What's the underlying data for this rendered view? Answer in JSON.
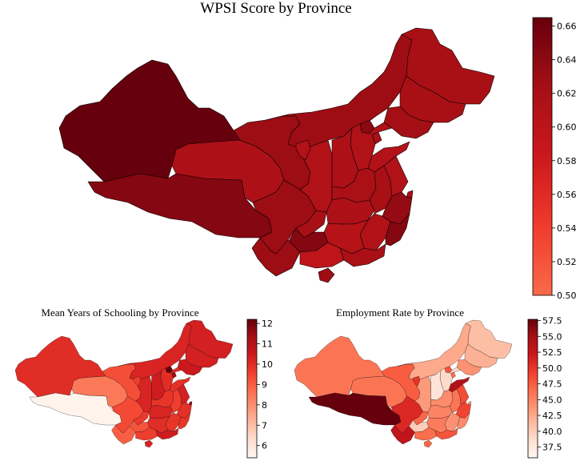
{
  "figure": {
    "main_title": "WPSI Score by Province",
    "left_title": "Mean Years of Schooling by Province",
    "right_title": "Employment Rate by Province"
  },
  "colorbars": {
    "main": {
      "min": 0.5,
      "max": 0.665,
      "ticks": [
        "0.50",
        "0.52",
        "0.54",
        "0.56",
        "0.58",
        "0.60",
        "0.62",
        "0.64",
        "0.66"
      ],
      "tick_values": [
        0.5,
        0.52,
        0.54,
        0.56,
        0.58,
        0.6,
        0.62,
        0.64,
        0.66
      ]
    },
    "left": {
      "min": 5.4,
      "max": 12.2,
      "ticks": [
        "6",
        "7",
        "8",
        "9",
        "10",
        "11",
        "12"
      ],
      "tick_values": [
        6,
        7,
        8,
        9,
        10,
        11,
        12
      ]
    },
    "right": {
      "min": 35.8,
      "max": 57.7,
      "ticks": [
        "37.5",
        "40.0",
        "42.5",
        "45.0",
        "47.5",
        "50.0",
        "52.5",
        "55.0",
        "57.5"
      ],
      "tick_values": [
        37.5,
        40.0,
        42.5,
        45.0,
        47.5,
        50.0,
        52.5,
        55.0,
        57.5
      ]
    }
  },
  "colormap": {
    "name": "Reds",
    "stops": [
      "#fff5f0",
      "#fee0d2",
      "#fcbba1",
      "#fc9272",
      "#fb6a4a",
      "#ef3b2c",
      "#cb181d",
      "#a50f15",
      "#67000d"
    ]
  },
  "chart_data": [
    {
      "type": "choropleth",
      "title": "WPSI Score by Province",
      "values": {
        "Xinjiang": 0.665,
        "Tibet": 0.645,
        "Qinghai": 0.615,
        "Gansu": 0.63,
        "Inner Mongolia": 0.628,
        "Heilongjiang": 0.62,
        "Jilin": 0.62,
        "Liaoning": 0.625,
        "Beijing": 0.64,
        "Tianjin": 0.62,
        "Hebei": 0.612,
        "Shanxi": 0.615,
        "Shaanxi": 0.612,
        "Ningxia": 0.61,
        "Shandong": 0.61,
        "Henan": 0.618,
        "Sichuan": 0.63,
        "Chongqing": 0.62,
        "Hubei": 0.615,
        "Anhui": 0.62,
        "Jiangsu": 0.612,
        "Shanghai": 0.62,
        "Zhejiang": 0.635,
        "Jiangxi": 0.612,
        "Hunan": 0.605,
        "Guizhou": 0.645,
        "Yunnan": 0.63,
        "Guangxi": 0.598,
        "Guangdong": 0.618,
        "Fujian": 0.645,
        "Hainan": 0.628
      }
    },
    {
      "type": "choropleth",
      "title": "Mean Years of Schooling by Province",
      "values": {
        "Xinjiang": 10.0,
        "Tibet": 5.5,
        "Qinghai": 8.5,
        "Gansu": 9.3,
        "Inner Mongolia": 10.2,
        "Heilongjiang": 10.3,
        "Jilin": 10.3,
        "Liaoning": 10.5,
        "Beijing": 12.2,
        "Tianjin": 11.5,
        "Hebei": 10.0,
        "Shanxi": 10.4,
        "Shaanxi": 10.2,
        "Ningxia": 9.6,
        "Shandong": 9.9,
        "Henan": 9.8,
        "Sichuan": 9.4,
        "Chongqing": 9.7,
        "Hubei": 10.2,
        "Anhui": 9.6,
        "Jiangsu": 10.3,
        "Shanghai": 11.6,
        "Zhejiang": 9.9,
        "Jiangxi": 9.8,
        "Hunan": 10.0,
        "Guizhou": 9.2,
        "Yunnan": 9.0,
        "Guangxi": 9.6,
        "Guangdong": 10.4,
        "Fujian": 9.8,
        "Hainan": 10.2
      }
    },
    {
      "type": "choropleth",
      "title": "Employment Rate by Province",
      "values": {
        "Xinjiang": 46.0,
        "Tibet": 57.7,
        "Qinghai": 46.0,
        "Gansu": 47.5,
        "Inner Mongolia": 42.5,
        "Heilongjiang": 41.0,
        "Jilin": 42.0,
        "Liaoning": 44.0,
        "Beijing": 48.0,
        "Tianjin": 46.5,
        "Hebei": 39.0,
        "Shanxi": 38.0,
        "Shaanxi": 43.5,
        "Ningxia": 50.0,
        "Shandong": 54.0,
        "Henan": 44.5,
        "Sichuan": 51.0,
        "Chongqing": 47.0,
        "Hubei": 45.0,
        "Anhui": 46.0,
        "Jiangsu": 48.5,
        "Shanghai": 44.0,
        "Zhejiang": 49.0,
        "Jiangxi": 44.0,
        "Hunan": 45.5,
        "Guizhou": 40.0,
        "Yunnan": 53.0,
        "Guangxi": 46.5,
        "Guangdong": 48.0,
        "Fujian": 44.5,
        "Hainan": 47.0
      }
    }
  ]
}
